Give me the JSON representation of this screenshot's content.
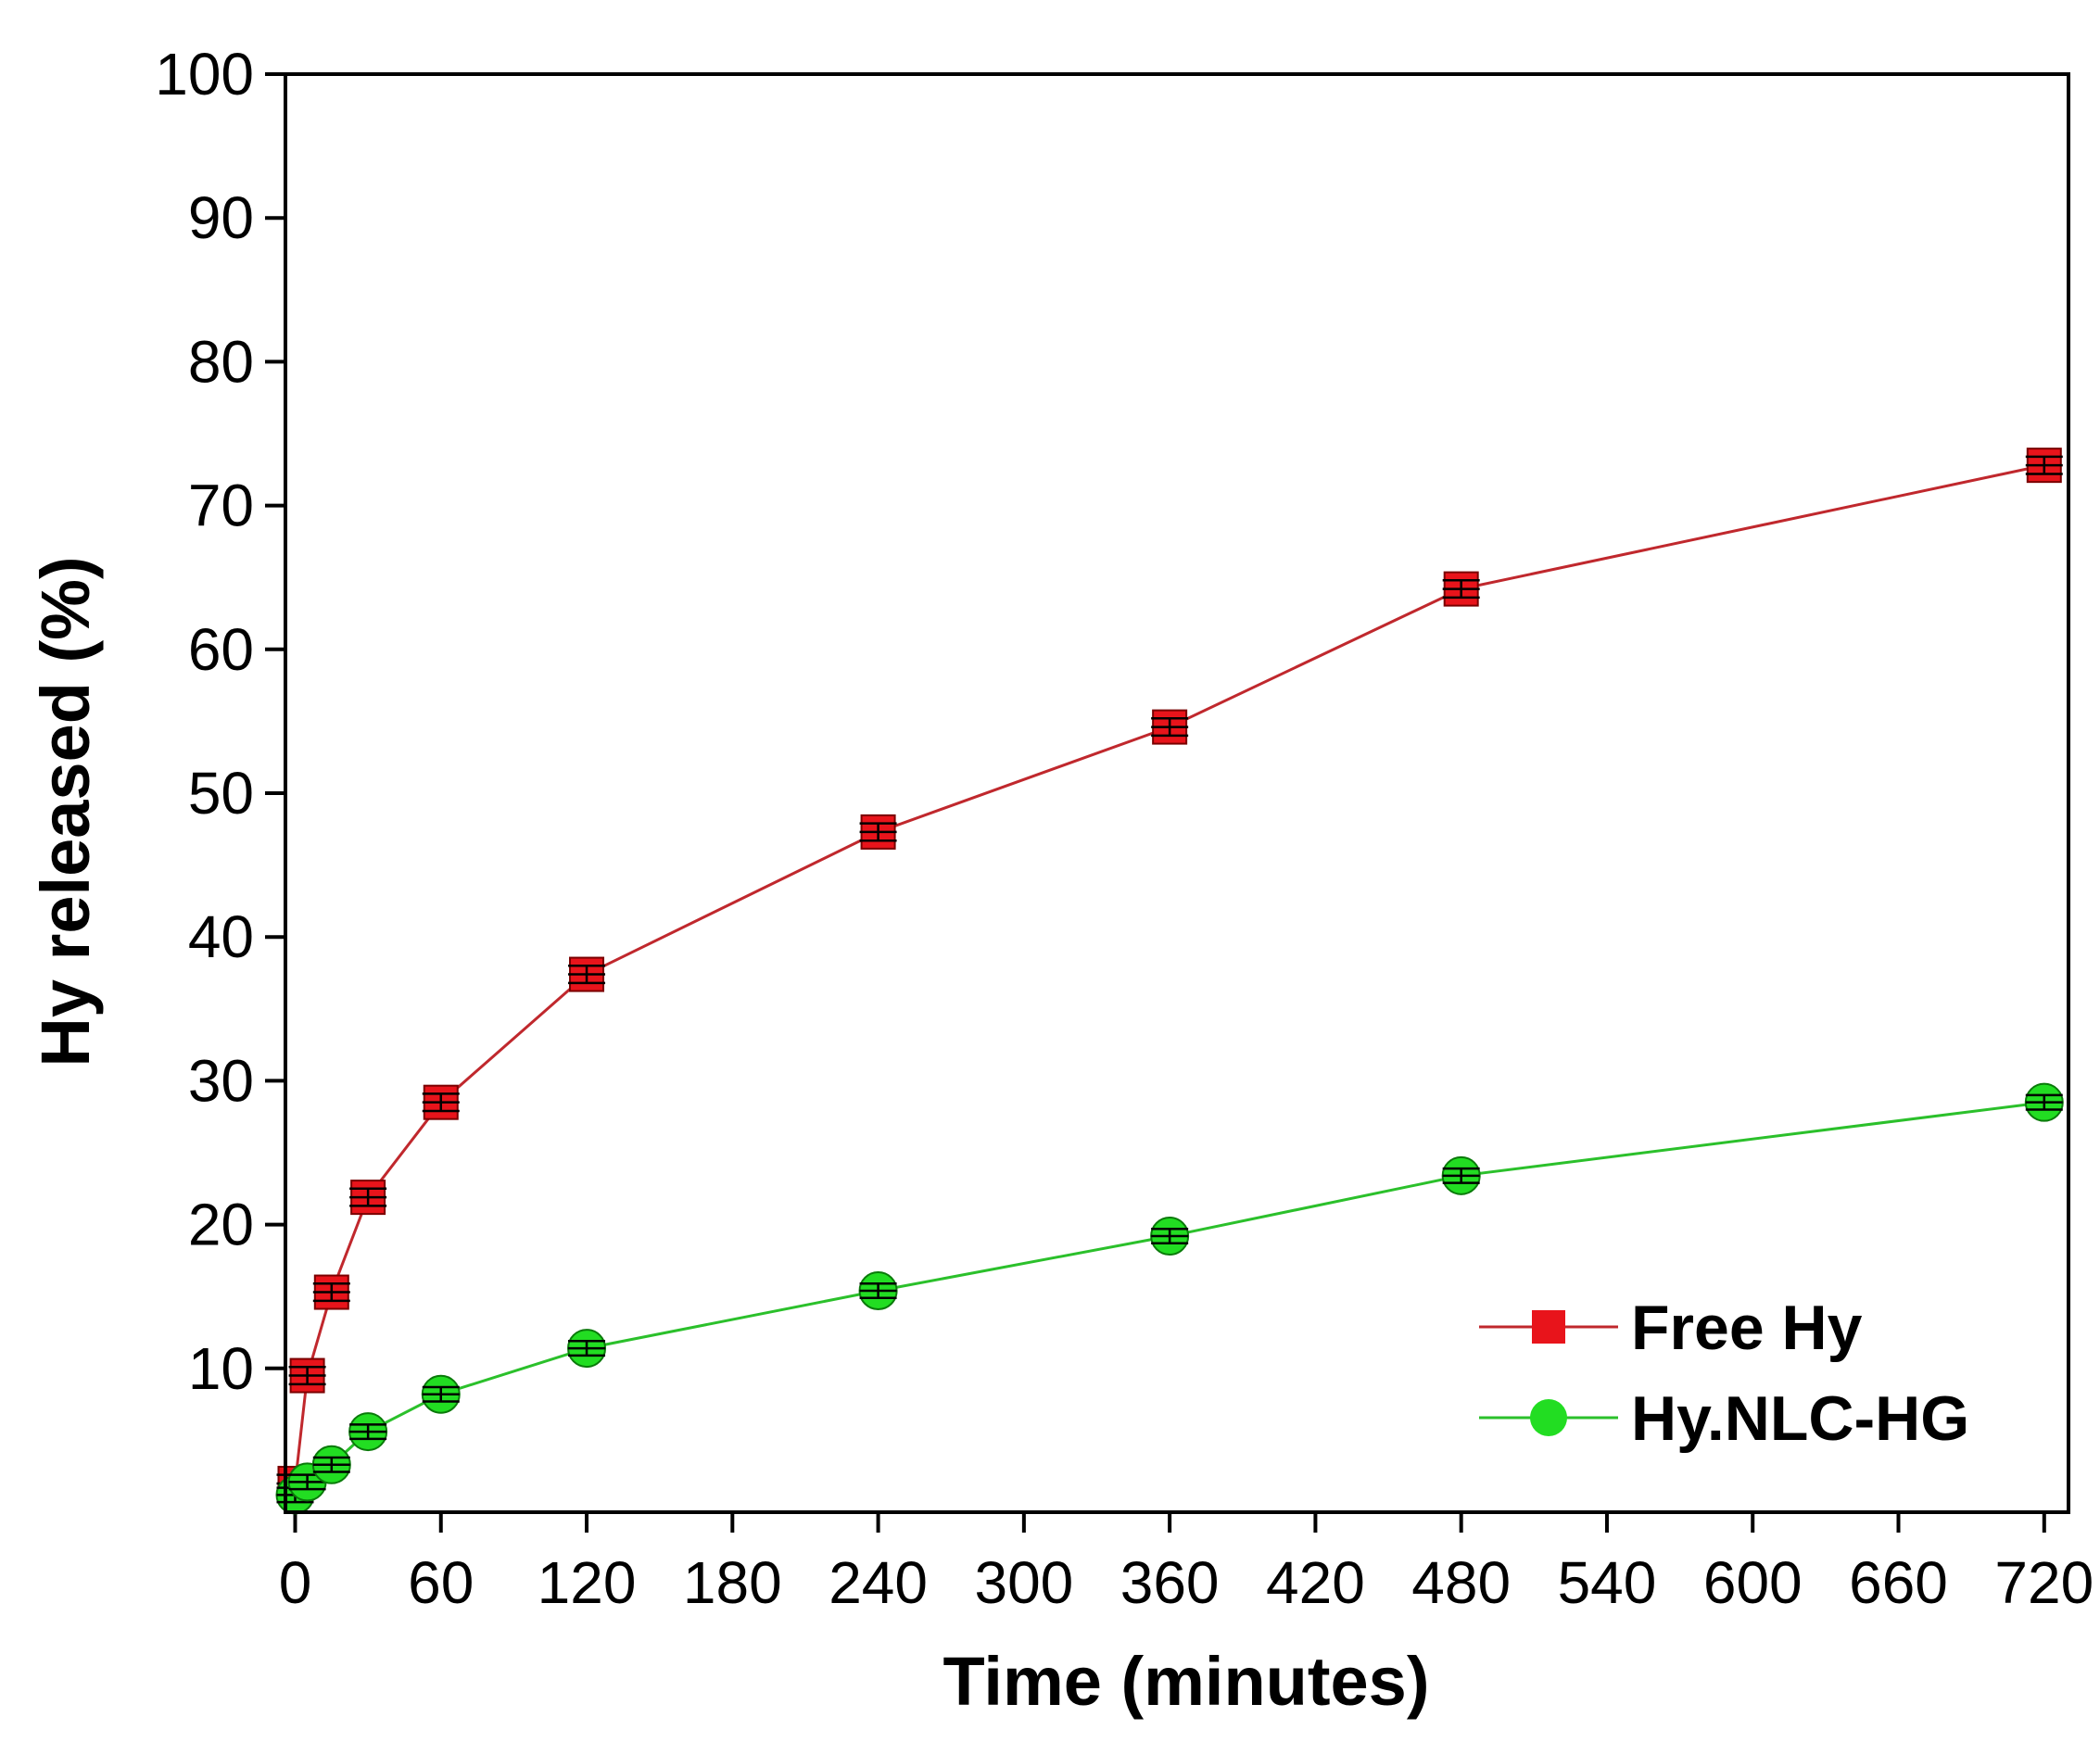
{
  "chart_data": {
    "type": "line",
    "title": "",
    "xlabel": "Time (minutes)",
    "ylabel": "Hy released (%)",
    "xlim": [
      -4,
      730
    ],
    "ylim": [
      0,
      100
    ],
    "x_ticks": [
      "0",
      "60",
      "120",
      "180",
      "240",
      "300",
      "360",
      "420",
      "480",
      "540",
      "600",
      "660",
      "720"
    ],
    "y_ticks": [
      "10",
      "20",
      "30",
      "40",
      "50",
      "60",
      "70",
      "80",
      "90",
      "100"
    ],
    "legend_position": "bottom-right",
    "grid": false,
    "series": [
      {
        "name": "Free Hy",
        "marker": "square",
        "color": "#e8141b",
        "line_color": "#c0282d",
        "x": [
          0,
          5,
          15,
          30,
          60,
          120,
          240,
          360,
          480,
          720
        ],
        "y": [
          2.0,
          9.5,
          15.3,
          21.9,
          28.5,
          37.4,
          47.3,
          54.6,
          64.2,
          72.8
        ],
        "error": [
          0.6,
          0.6,
          0.6,
          0.6,
          0.6,
          0.6,
          0.6,
          0.6,
          0.6,
          0.6
        ]
      },
      {
        "name": "Hy.NLC-HG",
        "marker": "circle",
        "color": "#22dd22",
        "line_color": "#2bc02b",
        "x": [
          0,
          5,
          15,
          30,
          60,
          120,
          240,
          360,
          480,
          720
        ],
        "y": [
          1.2,
          2.1,
          3.3,
          5.6,
          8.2,
          11.4,
          15.4,
          19.2,
          23.4,
          28.5
        ],
        "error": [
          0.5,
          0.5,
          0.5,
          0.5,
          0.5,
          0.5,
          0.5,
          0.5,
          0.5,
          0.5
        ]
      }
    ]
  }
}
